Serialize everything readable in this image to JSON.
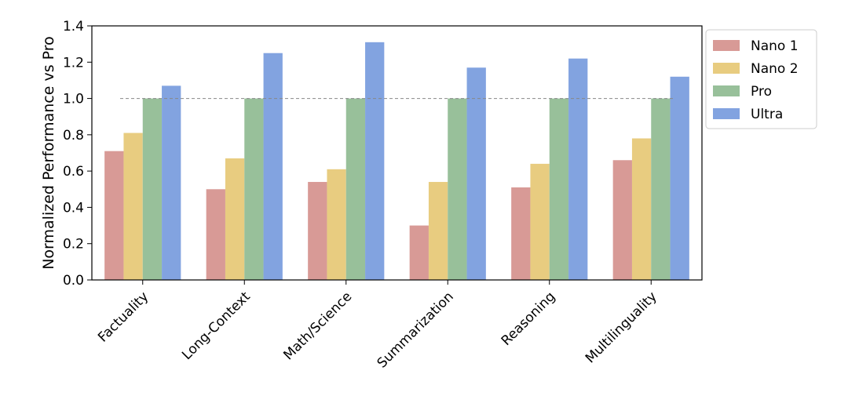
{
  "chart_data": {
    "type": "bar",
    "ylabel": "Normalized Performance vs Pro",
    "xlabel": "",
    "ylim": [
      0,
      1.4
    ],
    "yticks": [
      "0.0",
      "0.2",
      "0.4",
      "0.6",
      "0.8",
      "1.0",
      "1.2",
      "1.4"
    ],
    "categories": [
      "Factuality",
      "Long-Context",
      "Math/Science",
      "Summarization",
      "Reasoning",
      "Multilinguality"
    ],
    "series": [
      {
        "name": "Nano 1",
        "color": "#d89a96",
        "values": [
          0.71,
          0.5,
          0.54,
          0.3,
          0.51,
          0.66
        ]
      },
      {
        "name": "Nano 2",
        "color": "#e8cc80",
        "values": [
          0.81,
          0.67,
          0.61,
          0.54,
          0.64,
          0.78
        ]
      },
      {
        "name": "Pro",
        "color": "#98c09a",
        "values": [
          1.0,
          1.0,
          1.0,
          1.0,
          1.0,
          1.0
        ]
      },
      {
        "name": "Ultra",
        "color": "#82a3e0",
        "values": [
          1.07,
          1.25,
          1.31,
          1.17,
          1.22,
          1.12
        ]
      }
    ],
    "reference_line": {
      "y": 1.0,
      "style": "dashed"
    },
    "legend_position": "upper-right-outside",
    "grid": false
  }
}
